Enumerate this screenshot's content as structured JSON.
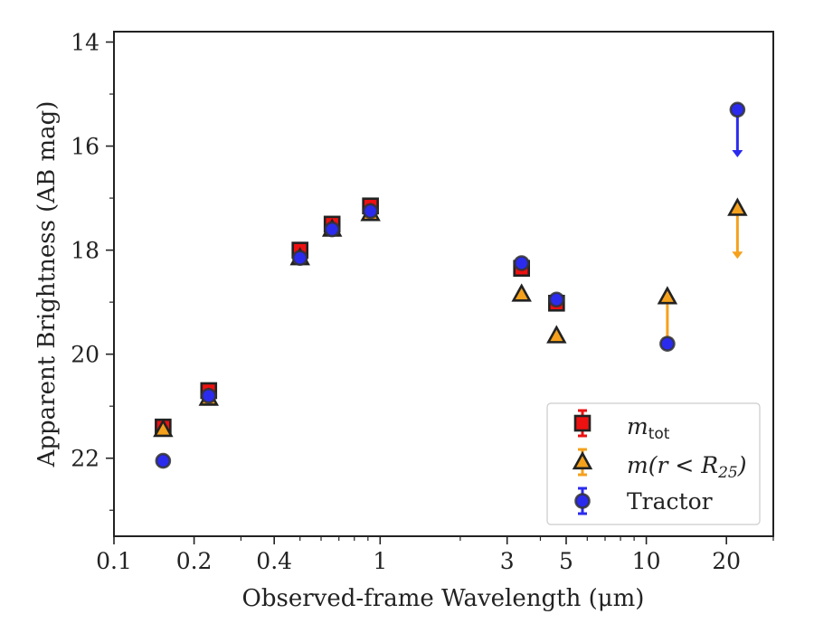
{
  "chart_data": {
    "type": "scatter",
    "title": "",
    "xlabel": "Observed-frame Wavelength (μm)",
    "ylabel": "Apparent Brightness (AB mag)",
    "xscale": "log",
    "xlim": [
      0.1,
      30
    ],
    "ylim": [
      23.5,
      13.8
    ],
    "y_inverted": true,
    "grid": false,
    "legend_position": "lower-right",
    "x_ticks": [
      {
        "value": 0.1,
        "label": "0.1"
      },
      {
        "value": 0.2,
        "label": "0.2"
      },
      {
        "value": 0.4,
        "label": "0.4"
      },
      {
        "value": 1,
        "label": "1"
      },
      {
        "value": 3,
        "label": "3"
      },
      {
        "value": 5,
        "label": "5"
      },
      {
        "value": 10,
        "label": "10"
      },
      {
        "value": 20,
        "label": "20"
      }
    ],
    "x_minor_ticks": [
      0.3,
      0.5,
      0.6,
      0.7,
      0.8,
      0.9,
      2,
      4,
      6,
      7,
      8,
      9,
      30
    ],
    "y_ticks": [
      {
        "value": 14,
        "label": "14"
      },
      {
        "value": 16,
        "label": "16"
      },
      {
        "value": 18,
        "label": "18"
      },
      {
        "value": 20,
        "label": "20"
      },
      {
        "value": 22,
        "label": "22"
      }
    ],
    "y_minor_ticks": [
      15,
      17,
      19,
      21,
      23
    ],
    "series": [
      {
        "legend_label": "m_tot",
        "marker": "square",
        "color": "#ee1111",
        "points": [
          {
            "x": 0.153,
            "y": 21.4
          },
          {
            "x": 0.227,
            "y": 20.7
          },
          {
            "x": 0.5,
            "y": 18.0
          },
          {
            "x": 0.66,
            "y": 17.5
          },
          {
            "x": 0.92,
            "y": 17.15
          },
          {
            "x": 3.4,
            "y": 18.35
          },
          {
            "x": 4.6,
            "y": 19.02
          }
        ]
      },
      {
        "legend_label": "m(r < R_25)",
        "marker": "triangle",
        "color": "#f5a11c",
        "points": [
          {
            "x": 0.153,
            "y": 21.45
          },
          {
            "x": 0.227,
            "y": 20.85
          },
          {
            "x": 0.5,
            "y": 18.15
          },
          {
            "x": 0.66,
            "y": 17.6
          },
          {
            "x": 0.92,
            "y": 17.3
          },
          {
            "x": 3.4,
            "y": 18.85
          },
          {
            "x": 4.6,
            "y": 19.65
          },
          {
            "x": 12.0,
            "y": 18.9,
            "upper_limit": true,
            "arrow_to": 19.8
          },
          {
            "x": 22.0,
            "y": 17.2,
            "upper_limit": true,
            "arrow_to": 18.15
          }
        ]
      },
      {
        "legend_label": "Tractor",
        "marker": "circle",
        "color": "#2b2bee",
        "points": [
          {
            "x": 0.153,
            "y": 22.05
          },
          {
            "x": 0.227,
            "y": 20.8
          },
          {
            "x": 0.5,
            "y": 18.15
          },
          {
            "x": 0.66,
            "y": 17.6
          },
          {
            "x": 0.92,
            "y": 17.25
          },
          {
            "x": 3.4,
            "y": 18.25
          },
          {
            "x": 4.6,
            "y": 18.95
          },
          {
            "x": 12.0,
            "y": 19.8
          },
          {
            "x": 22.0,
            "y": 15.3,
            "upper_limit": true,
            "arrow_to": 16.2
          }
        ]
      }
    ],
    "legend": {
      "mtot_base": "m",
      "mtot_sub": "tot",
      "mr_prefix": "m(r < R",
      "mr_sub": "25",
      "mr_suffix": ")",
      "tractor": "Tractor"
    }
  }
}
